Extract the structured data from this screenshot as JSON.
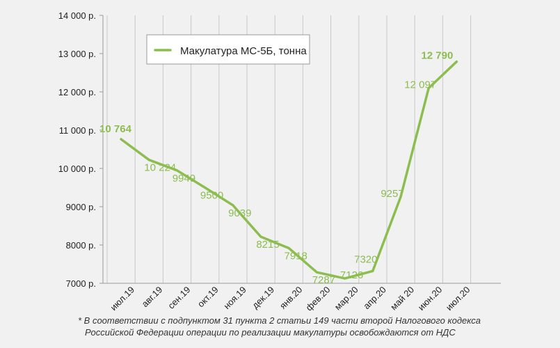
{
  "chart_data": {
    "type": "line",
    "categories": [
      "июл.19",
      "авг.19",
      "сен.19",
      "окт.19",
      "ноя.19",
      "дек.19",
      "янв.20",
      "фев.20",
      "мар.20",
      "апр.20",
      "май 20",
      "июн.20",
      "июл.20"
    ],
    "series": [
      {
        "name": "Макулатура МС-5Б, тонна",
        "values": [
          10764,
          10224,
          9949,
          9500,
          9039,
          8215,
          7918,
          7287,
          7126,
          7320,
          9257,
          12097,
          12790
        ],
        "value_labels": [
          "10 764",
          "10 224",
          "9949",
          "9500",
          "9039",
          "8215",
          "7918",
          "7287",
          "7126",
          "7320",
          "9257",
          "12 097",
          "12 790"
        ],
        "color": "#8cbd4f"
      }
    ],
    "ylim": [
      7000,
      14000
    ],
    "yticks": [
      7000,
      8000,
      9000,
      10000,
      11000,
      12000,
      13000,
      14000
    ],
    "ytick_labels": [
      "7000 р.",
      "8000 р.",
      "9000 р.",
      "10 000 р.",
      "11 000 р.",
      "12 000 р.",
      "13 000 р.",
      "14 000 р."
    ],
    "grid": "vertical",
    "legend": "top-left",
    "title": "",
    "xlabel": "",
    "ylabel": ""
  },
  "footnote": {
    "line1": "* В соответствии с подпунктом 31 пункта 2 статьи 149 части второй Налогового кодекса",
    "line2": "Российской Федерации операции по реализации макулатуры освобождаются от НДС"
  }
}
